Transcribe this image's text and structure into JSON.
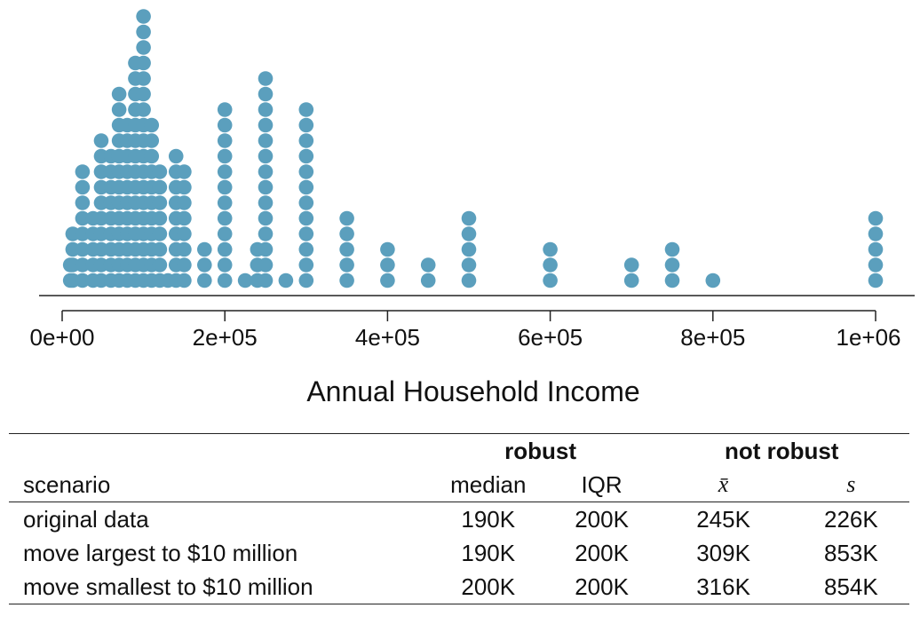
{
  "chart_data": {
    "type": "scatter",
    "subtype": "dot plot (stacked)",
    "xlabel": "Annual Household Income",
    "xlim": [
      0,
      1000000
    ],
    "ticks": [
      {
        "value": 0,
        "label": "0e+00"
      },
      {
        "value": 200000,
        "label": "2e+05"
      },
      {
        "value": 400000,
        "label": "4e+05"
      },
      {
        "value": 600000,
        "label": "6e+05"
      },
      {
        "value": 800000,
        "label": "8e+05"
      },
      {
        "value": 1000000,
        "label": "1e+06"
      }
    ],
    "dot_color": "#5b9fbd",
    "stacks": [
      {
        "x": 10000,
        "count": 2
      },
      {
        "x": 13000,
        "count": 4
      },
      {
        "x": 25000,
        "count": 8
      },
      {
        "x": 38000,
        "count": 5
      },
      {
        "x": 48000,
        "count": 10
      },
      {
        "x": 60000,
        "count": 9
      },
      {
        "x": 70000,
        "count": 13
      },
      {
        "x": 80000,
        "count": 11
      },
      {
        "x": 90000,
        "count": 15
      },
      {
        "x": 100000,
        "count": 18
      },
      {
        "x": 110000,
        "count": 11
      },
      {
        "x": 120000,
        "count": 8
      },
      {
        "x": 130000,
        "count": 1
      },
      {
        "x": 140000,
        "count": 9
      },
      {
        "x": 150000,
        "count": 8
      },
      {
        "x": 175000,
        "count": 3
      },
      {
        "x": 200000,
        "count": 12
      },
      {
        "x": 225000,
        "count": 1
      },
      {
        "x": 240000,
        "count": 3
      },
      {
        "x": 250000,
        "count": 14
      },
      {
        "x": 275000,
        "count": 1
      },
      {
        "x": 300000,
        "count": 12
      },
      {
        "x": 350000,
        "count": 5
      },
      {
        "x": 400000,
        "count": 3
      },
      {
        "x": 450000,
        "count": 2
      },
      {
        "x": 500000,
        "count": 5
      },
      {
        "x": 600000,
        "count": 3
      },
      {
        "x": 700000,
        "count": 2
      },
      {
        "x": 750000,
        "count": 3
      },
      {
        "x": 800000,
        "count": 1
      },
      {
        "x": 1000000,
        "count": 5
      }
    ]
  },
  "table": {
    "group_robust": "robust",
    "group_not_robust": "not robust",
    "headers": {
      "scenario": "scenario",
      "median": "median",
      "iqr": "IQR",
      "mean": "x̄",
      "sd": "s"
    },
    "rows": [
      {
        "scenario": "original data",
        "median": "190K",
        "iqr": "200K",
        "mean": "245K",
        "sd": "226K"
      },
      {
        "scenario": "move largest to $10 million",
        "median": "190K",
        "iqr": "200K",
        "mean": "309K",
        "sd": "853K"
      },
      {
        "scenario": "move smallest to $10 million",
        "median": "200K",
        "iqr": "200K",
        "mean": "316K",
        "sd": "854K"
      }
    ]
  }
}
